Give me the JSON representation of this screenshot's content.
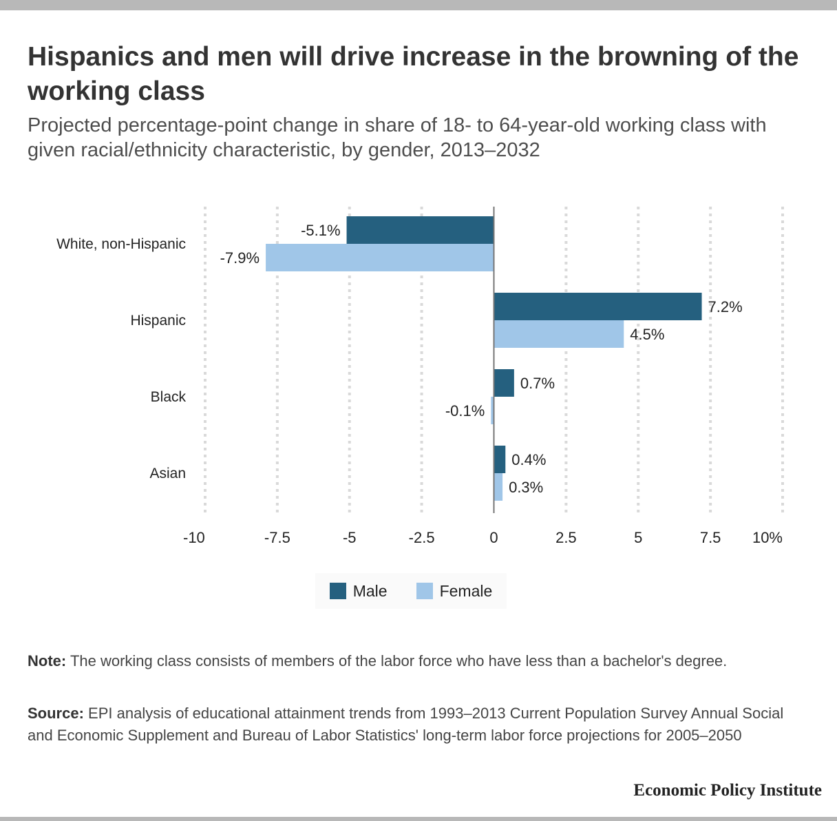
{
  "title": "Hispanics and men will drive increase in the browning of the working class",
  "subtitle": "Projected percentage-point change in share of 18- to 64-year-old working class with given racial/ethnicity characteristic, by gender, 2013–2032",
  "note": {
    "label": "Note:",
    "text": "The working class consists of members of the labor force who have less than a bachelor's degree."
  },
  "source": {
    "label": "Source:",
    "text": "EPI analysis of educational attainment trends from 1993–2013 Current Population Survey Annual Social and Economic Supplement and Bureau of Labor Statistics' long-term labor force projections for 2005–2050"
  },
  "publisher": "Economic Policy Institute",
  "legend": [
    {
      "label": "Male",
      "color": "#25607f"
    },
    {
      "label": "Female",
      "color": "#a0c6e8"
    }
  ],
  "chart_data": {
    "type": "bar",
    "orientation": "horizontal",
    "categories": [
      "White, non-Hispanic",
      "Hispanic",
      "Black",
      "Asian"
    ],
    "series": [
      {
        "name": "Male",
        "values": [
          -5.1,
          7.2,
          0.7,
          0.4
        ],
        "labels": [
          "-5.1%",
          "7.2%",
          "0.7%",
          "0.4%"
        ],
        "color": "#25607f"
      },
      {
        "name": "Female",
        "values": [
          -7.9,
          4.5,
          -0.1,
          0.3
        ],
        "labels": [
          "-7.9%",
          "4.5%",
          "-0.1%",
          "0.3%"
        ],
        "color": "#a0c6e8"
      }
    ],
    "xlim": [
      -10,
      10
    ],
    "xticks": [
      -10,
      -7.5,
      -5,
      -2.5,
      0,
      2.5,
      5,
      7.5,
      10
    ],
    "xtick_labels": [
      "-10",
      "-7.5",
      "-5",
      "-2.5",
      "0",
      "2.5",
      "5",
      "7.5",
      "10%"
    ],
    "grid": "vertical dotted",
    "legend_position": "bottom-center"
  }
}
